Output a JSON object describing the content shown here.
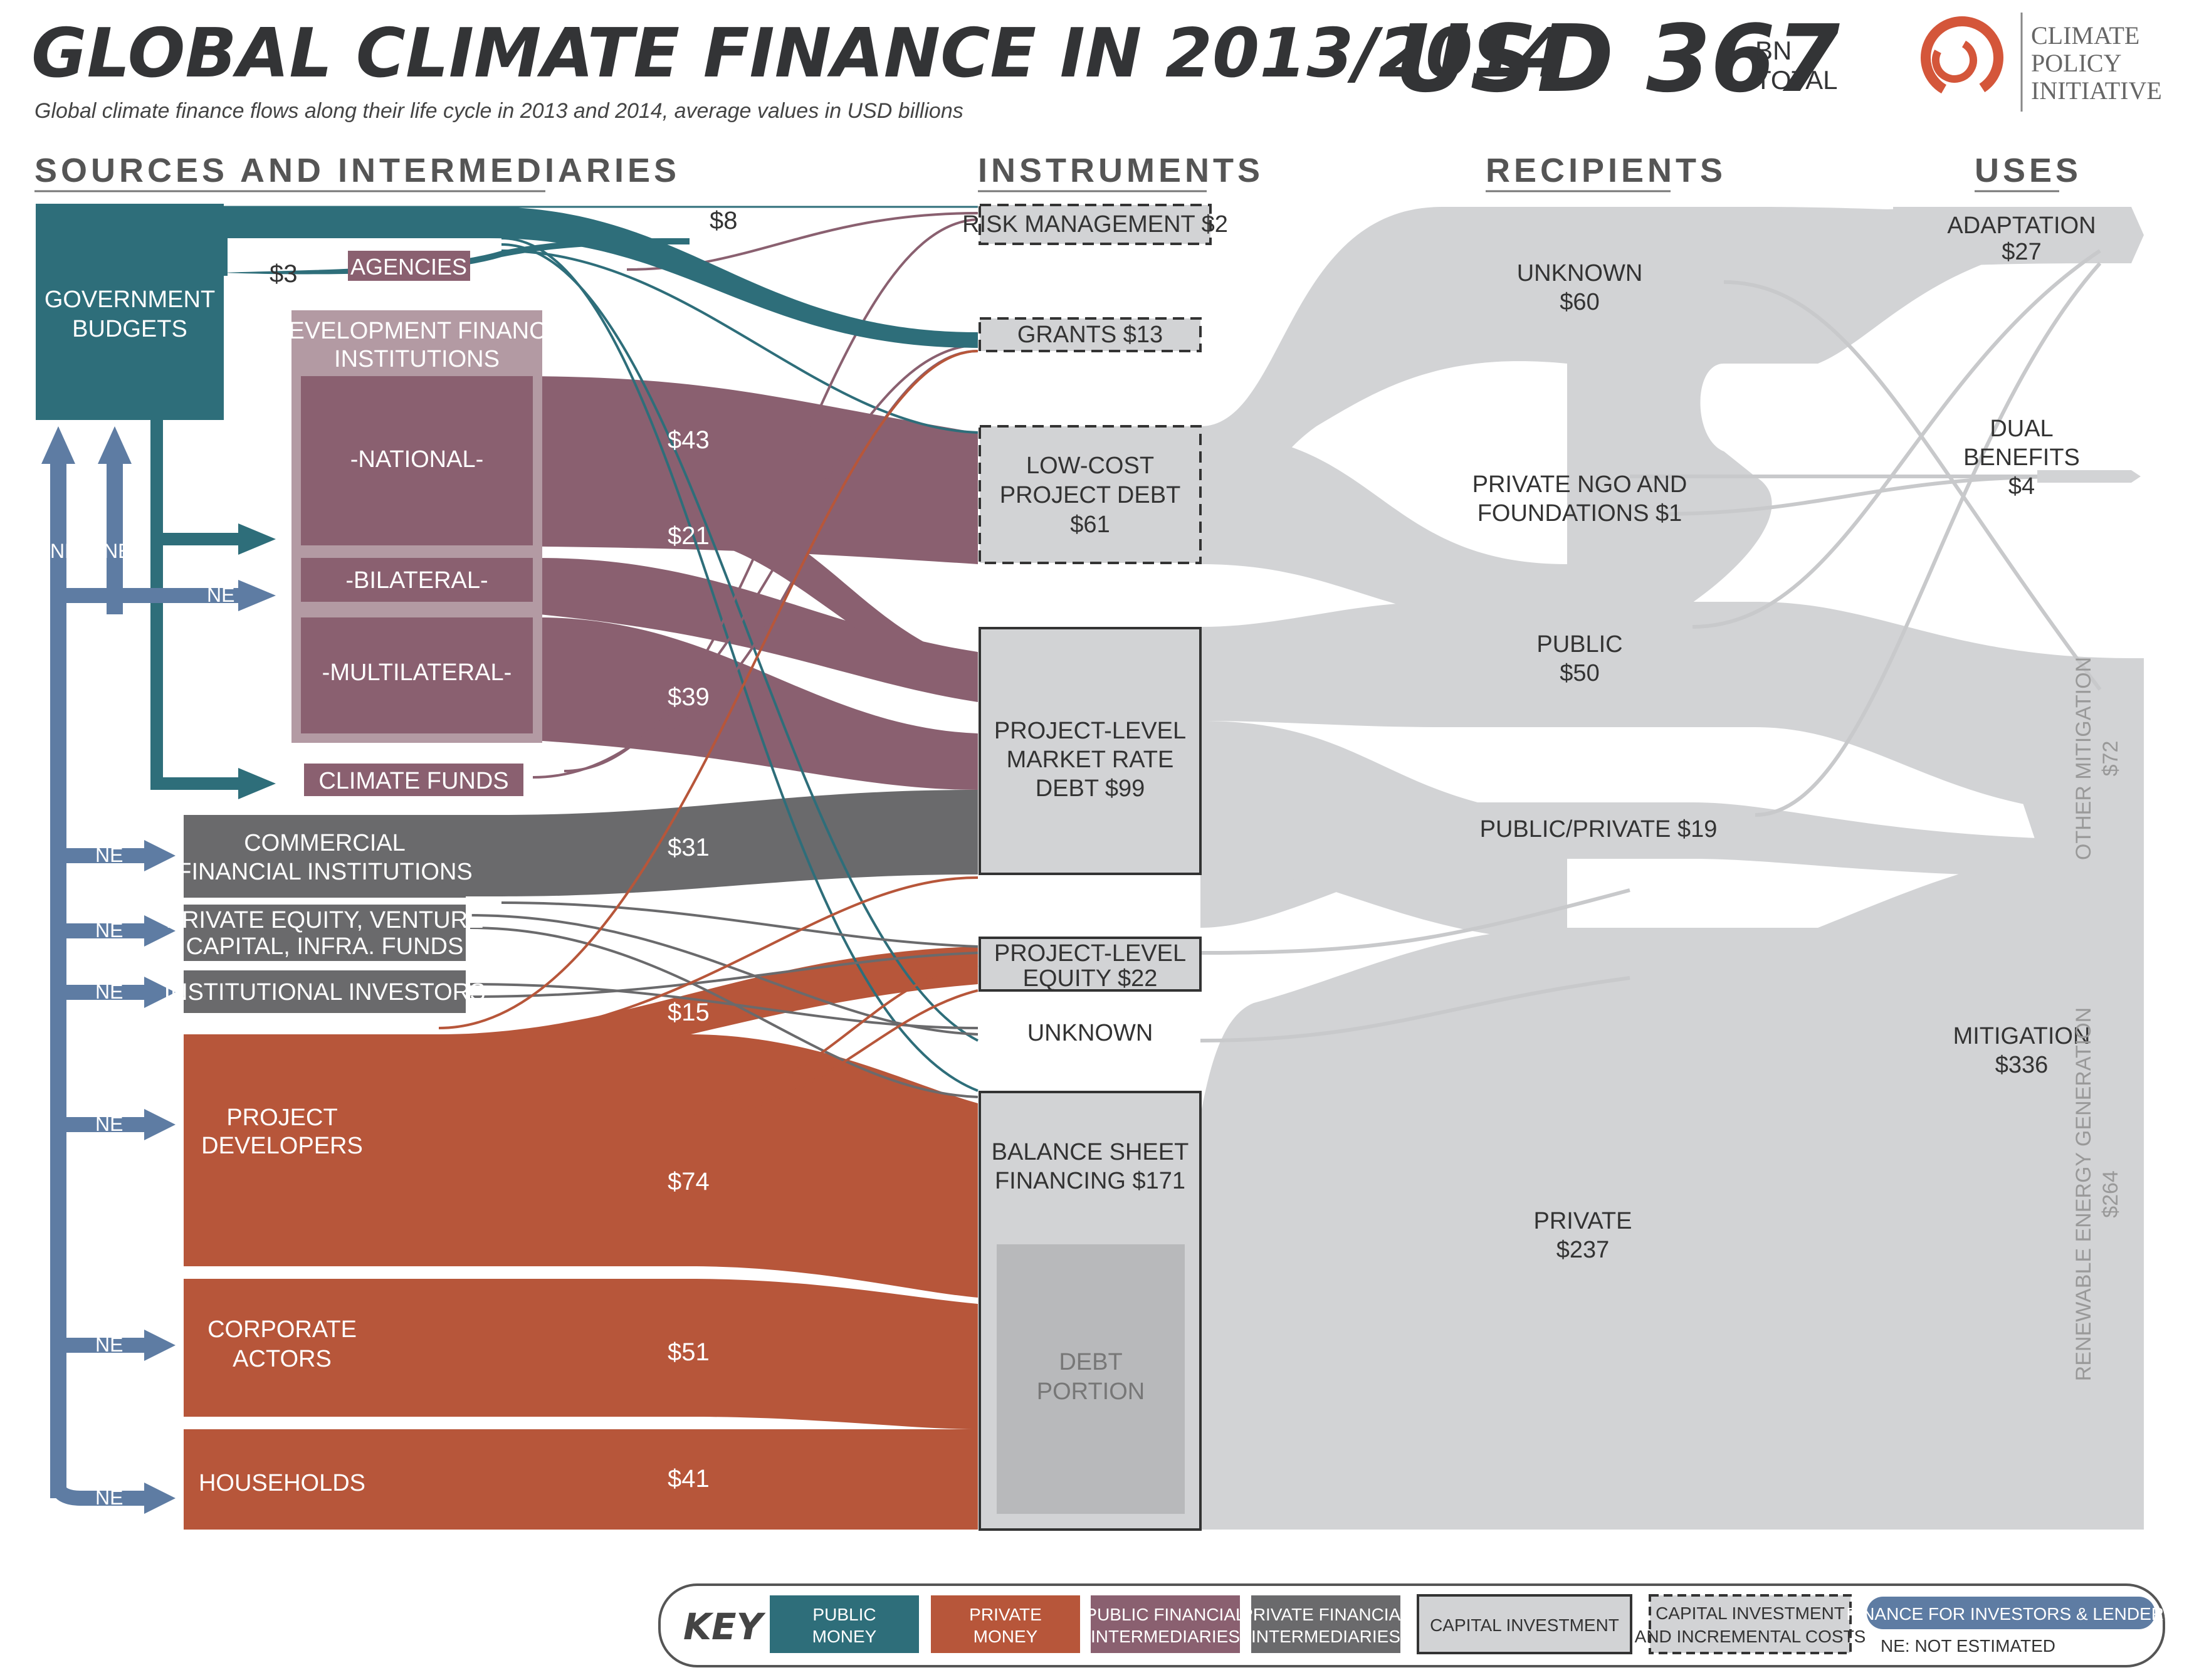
{
  "header": {
    "title": "GLOBAL CLIMATE FINANCE IN 2013/2014",
    "total_value": "USD 367",
    "total_unit_line1": "BN",
    "total_unit_line2": "TOTAL",
    "subtitle": "Global climate finance flows along their life cycle in 2013 and 2014, average values in USD billions",
    "logo_line1": "CLIMATE",
    "logo_line2": "POLICY",
    "logo_line3": "INITIATIVE"
  },
  "columns": {
    "sources": "SOURCES AND INTERMEDIARIES",
    "instruments": "INSTRUMENTS",
    "recipients": "RECIPIENTS",
    "uses": "USES"
  },
  "sources": {
    "government_line1": "GOVERNMENT",
    "government_line2": "BUDGETS",
    "agencies": "AGENCIES",
    "dfi_line1": "DEVELOPMENT FINANCE",
    "dfi_line2": "INSTITUTIONS",
    "national": "-NATIONAL-",
    "bilateral": "-BILATERAL-",
    "multilateral": "-MULTILATERAL-",
    "climate_funds": "CLIMATE FUNDS",
    "commercial_line1": "COMMERCIAL",
    "commercial_line2": "FINANCIAL INSTITUTIONS",
    "pe_line1": "PRIVATE EQUITY, VENTURE",
    "pe_line2": "CAPITAL, INFRA. FUNDS",
    "institutional": "INSTITUTIONAL INVESTORS",
    "developers_line1": "PROJECT",
    "developers_line2": "DEVELOPERS",
    "corporate_line1": "CORPORATE",
    "corporate_line2": "ACTORS",
    "households": "HOUSEHOLDS",
    "ne": "NE"
  },
  "flow_values": {
    "gov_to_grants": "$8",
    "gov_to_agencies": "$3",
    "national": "$43",
    "bilateral": "$21",
    "multilateral": "$39",
    "commercial": "$31",
    "developers_equity": "$15",
    "developers": "$74",
    "corporate": "$51",
    "households": "$41"
  },
  "instruments": {
    "risk": "RISK MANAGEMENT $2",
    "grants": "GRANTS $13",
    "lowcost_line1": "LOW-COST",
    "lowcost_line2": "PROJECT DEBT",
    "lowcost_line3": "$61",
    "market_line1": "PROJECT-LEVEL",
    "market_line2": "MARKET RATE",
    "market_line3": "DEBT $99",
    "equity_line1": "PROJECT-LEVEL",
    "equity_line2": "EQUITY $22",
    "unknown": "UNKNOWN",
    "balance_line1": "BALANCE SHEET",
    "balance_line2": "FINANCING $171",
    "debt_line1": "DEBT",
    "debt_line2": "PORTION"
  },
  "recipients": {
    "unknown_line1": "UNKNOWN",
    "unknown_line2": "$60",
    "ngo_line1": "PRIVATE NGO AND",
    "ngo_line2": "FOUNDATIONS $1",
    "public_line1": "PUBLIC",
    "public_line2": "$50",
    "publicprivate": "PUBLIC/PRIVATE $19",
    "private_line1": "PRIVATE",
    "private_line2": "$237"
  },
  "uses": {
    "adaptation_line1": "ADAPTATION",
    "adaptation_line2": "$27",
    "dual_line1": "DUAL",
    "dual_line2": "BENEFITS",
    "dual_line3": "$4",
    "mitigation_line1": "MITIGATION",
    "mitigation_line2": "$336",
    "other_mitigation": "OTHER MITIGATION",
    "other_mitigation_value": "$72",
    "renewable": "RENEWABLE ENERGY GENERATION",
    "renewable_value": "$264"
  },
  "key": {
    "label": "KEY",
    "public_line1": "PUBLIC",
    "public_line2": "MONEY",
    "private_line1": "PRIVATE",
    "private_line2": "MONEY",
    "pubint_line1": "PUBLIC FINANCIAL",
    "pubint_line2": "INTERMEDIARIES",
    "privint_line1": "PRIVATE FINANCIAL",
    "privint_line2": "INTERMEDIARIES",
    "capital": "CAPITAL INVESTMENT",
    "incremental_line1": "CAPITAL INVESTMENT",
    "incremental_line2": "AND INCREMENTAL COSTS",
    "investors": "FINANCE FOR INVESTORS & LENDERS",
    "ne_note": "NE: NOT ESTIMATED"
  },
  "colors": {
    "public": "#2e6e7a",
    "private": "#b7563a",
    "public_intermediary": "#8a6070",
    "private_intermediary": "#6a6a6c",
    "flow_gray": "#d2d3d5",
    "ne_blue": "#5e7ca3"
  }
}
